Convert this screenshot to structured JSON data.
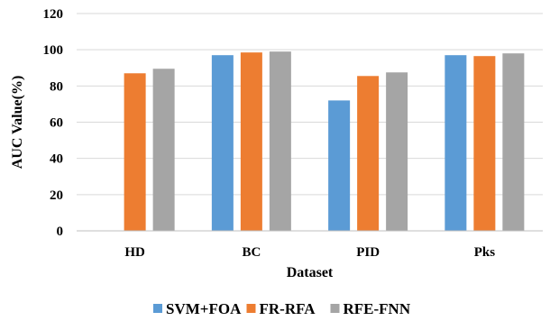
{
  "chart_data": {
    "type": "bar",
    "xlabel": "Dataset",
    "ylabel": "AUC Value(%)",
    "ylim": [
      0,
      120
    ],
    "yticks": [
      0,
      20,
      40,
      60,
      80,
      100,
      120
    ],
    "grid": true,
    "legend_position": "bottom",
    "categories": [
      "HD",
      "BC",
      "PID",
      "Pks"
    ],
    "series": [
      {
        "name": "SVM+FOA",
        "color": "#5b9bd5",
        "values": [
          0,
          97,
          72,
          97
        ]
      },
      {
        "name": "FR-RFA",
        "color": "#ed7d31",
        "values": [
          87,
          98.5,
          85.5,
          96.5
        ]
      },
      {
        "name": "RFE-FNN",
        "color": "#a5a5a5",
        "values": [
          89.5,
          99,
          87.5,
          98
        ]
      }
    ]
  }
}
